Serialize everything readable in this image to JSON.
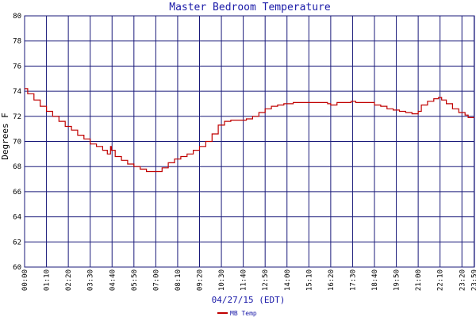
{
  "colors": {
    "background": "#ffffff",
    "grid": "#1a1a7a",
    "series": "#c00000",
    "text": "#1a1aa8"
  },
  "chart_data": {
    "type": "line",
    "title": "Master Bedroom Temperature",
    "xlabel": "04/27/15 (EDT)",
    "ylabel": "Degrees F",
    "ylim": [
      60,
      80
    ],
    "xlim": [
      0,
      1440
    ],
    "grid": true,
    "legend_position": "bottom-left",
    "x_unit": "minutes after midnight",
    "y_ticks": [
      60,
      62,
      64,
      66,
      68,
      70,
      72,
      74,
      76,
      78,
      80
    ],
    "x_ticks": [
      {
        "label": "00:00",
        "x": 0
      },
      {
        "label": "01:10",
        "x": 70
      },
      {
        "label": "02:20",
        "x": 140
      },
      {
        "label": "03:30",
        "x": 210
      },
      {
        "label": "04:40",
        "x": 280
      },
      {
        "label": "05:50",
        "x": 350
      },
      {
        "label": "07:00",
        "x": 420
      },
      {
        "label": "08:10",
        "x": 490
      },
      {
        "label": "09:20",
        "x": 560
      },
      {
        "label": "10:30",
        "x": 630
      },
      {
        "label": "11:40",
        "x": 700
      },
      {
        "label": "12:50",
        "x": 770
      },
      {
        "label": "14:00",
        "x": 840
      },
      {
        "label": "15:10",
        "x": 910
      },
      {
        "label": "16:20",
        "x": 980
      },
      {
        "label": "17:30",
        "x": 1050
      },
      {
        "label": "18:40",
        "x": 1120
      },
      {
        "label": "19:50",
        "x": 1190
      },
      {
        "label": "21:00",
        "x": 1260
      },
      {
        "label": "22:10",
        "x": 1330
      },
      {
        "label": "23:20",
        "x": 1400
      },
      {
        "label": "23:59",
        "x": 1439
      }
    ],
    "series": [
      {
        "name": "MB Temp",
        "points": [
          [
            0,
            74.2
          ],
          [
            10,
            73.8
          ],
          [
            30,
            73.3
          ],
          [
            50,
            72.8
          ],
          [
            70,
            72.4
          ],
          [
            90,
            72.0
          ],
          [
            110,
            71.6
          ],
          [
            130,
            71.2
          ],
          [
            150,
            70.9
          ],
          [
            170,
            70.5
          ],
          [
            190,
            70.2
          ],
          [
            210,
            69.8
          ],
          [
            230,
            69.6
          ],
          [
            250,
            69.3
          ],
          [
            265,
            69.0
          ],
          [
            272,
            69.0
          ],
          [
            275,
            69.6
          ],
          [
            278,
            69.3
          ],
          [
            290,
            68.8
          ],
          [
            310,
            68.5
          ],
          [
            330,
            68.2
          ],
          [
            350,
            68.0
          ],
          [
            370,
            67.8
          ],
          [
            390,
            67.6
          ],
          [
            420,
            67.6
          ],
          [
            440,
            67.9
          ],
          [
            460,
            68.3
          ],
          [
            480,
            68.6
          ],
          [
            500,
            68.8
          ],
          [
            520,
            69.0
          ],
          [
            540,
            69.3
          ],
          [
            560,
            69.6
          ],
          [
            580,
            70.0
          ],
          [
            600,
            70.6
          ],
          [
            620,
            71.3
          ],
          [
            640,
            71.6
          ],
          [
            660,
            71.7
          ],
          [
            690,
            71.7
          ],
          [
            710,
            71.8
          ],
          [
            730,
            72.0
          ],
          [
            750,
            72.3
          ],
          [
            770,
            72.6
          ],
          [
            790,
            72.8
          ],
          [
            810,
            72.9
          ],
          [
            830,
            73.0
          ],
          [
            860,
            73.1
          ],
          [
            900,
            73.1
          ],
          [
            950,
            73.1
          ],
          [
            970,
            73.0
          ],
          [
            980,
            72.9
          ],
          [
            1000,
            73.1
          ],
          [
            1030,
            73.1
          ],
          [
            1045,
            73.2
          ],
          [
            1060,
            73.1
          ],
          [
            1100,
            73.1
          ],
          [
            1120,
            72.9
          ],
          [
            1140,
            72.8
          ],
          [
            1160,
            72.6
          ],
          [
            1180,
            72.5
          ],
          [
            1200,
            72.4
          ],
          [
            1220,
            72.3
          ],
          [
            1240,
            72.2
          ],
          [
            1250,
            72.2
          ],
          [
            1260,
            72.4
          ],
          [
            1270,
            72.9
          ],
          [
            1290,
            73.2
          ],
          [
            1310,
            73.4
          ],
          [
            1325,
            73.5
          ],
          [
            1335,
            73.3
          ],
          [
            1350,
            73.0
          ],
          [
            1370,
            72.6
          ],
          [
            1390,
            72.3
          ],
          [
            1410,
            72.1
          ],
          [
            1420,
            71.9
          ],
          [
            1439,
            71.9
          ]
        ]
      }
    ]
  }
}
